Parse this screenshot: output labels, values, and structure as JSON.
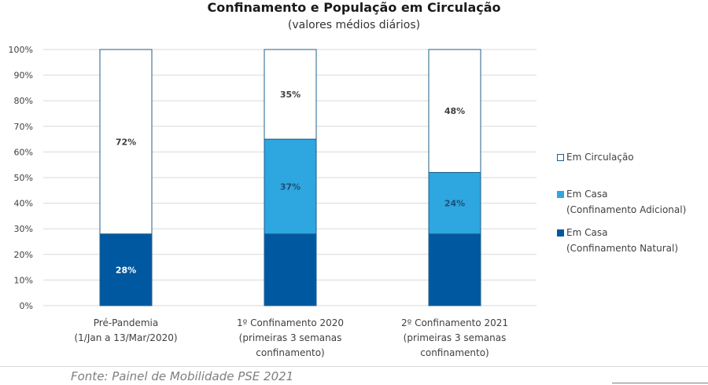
{
  "chart_data": {
    "type": "bar",
    "stacked": true,
    "percent_stacked": true,
    "title": "Confinamento e População em Circulação",
    "subtitle": "(valores médios diários)",
    "xlabel": "",
    "ylabel": "",
    "ylim": [
      0,
      100
    ],
    "yticks": [
      "0%",
      "10%",
      "20%",
      "30%",
      "40%",
      "50%",
      "60%",
      "70%",
      "80%",
      "90%",
      "100%"
    ],
    "grid": true,
    "legend_position": "right",
    "categories": [
      [
        "Pré-Pandemia",
        "(1/Jan a 13/Mar/2020)"
      ],
      [
        "1º Confinamento 2020",
        "(primeiras 3 semanas",
        "confinamento)"
      ],
      [
        "2º Confinamento 2021",
        "(primeiras 3 semanas",
        "confinamento)"
      ]
    ],
    "series": [
      {
        "name": "Em Casa (Confinamento Natural)",
        "legend_lines": [
          "Em Casa",
          "(Confinamento Natural)"
        ],
        "color": "#0059a0",
        "label_color": "#ffffff",
        "values": [
          28,
          28,
          28
        ],
        "labels": [
          "28%",
          "",
          ""
        ]
      },
      {
        "name": "Em Casa (Confinamento Adicional)",
        "legend_lines": [
          "Em Casa",
          "(Confinamento Adicional)"
        ],
        "color": "#2ea6e0",
        "label_color": "#1f4e79",
        "values": [
          0,
          37,
          24
        ],
        "labels": [
          "",
          "37%",
          "24%"
        ]
      },
      {
        "name": "Em Circulação",
        "legend_lines": [
          "Em Circulação"
        ],
        "color": "#ffffff",
        "label_color": "#404040",
        "values": [
          72,
          35,
          48
        ],
        "labels": [
          "72%",
          "35%",
          "48%"
        ]
      }
    ]
  },
  "legend": {
    "items": [
      {
        "lines": [
          "Em Circulação"
        ],
        "color": "#ffffff"
      },
      {
        "lines": [
          "Em Casa",
          "(Confinamento Adicional)"
        ],
        "color": "#2ea6e0"
      },
      {
        "lines": [
          "Em Casa",
          "(Confinamento Natural)"
        ],
        "color": "#0059a0"
      }
    ]
  },
  "source": "Fonte: Painel de Mobilidade PSE 2021",
  "colors": {
    "bar_outline": "#1f5f8b",
    "gridline": "#d9d9d9",
    "axis_text": "#404040"
  }
}
